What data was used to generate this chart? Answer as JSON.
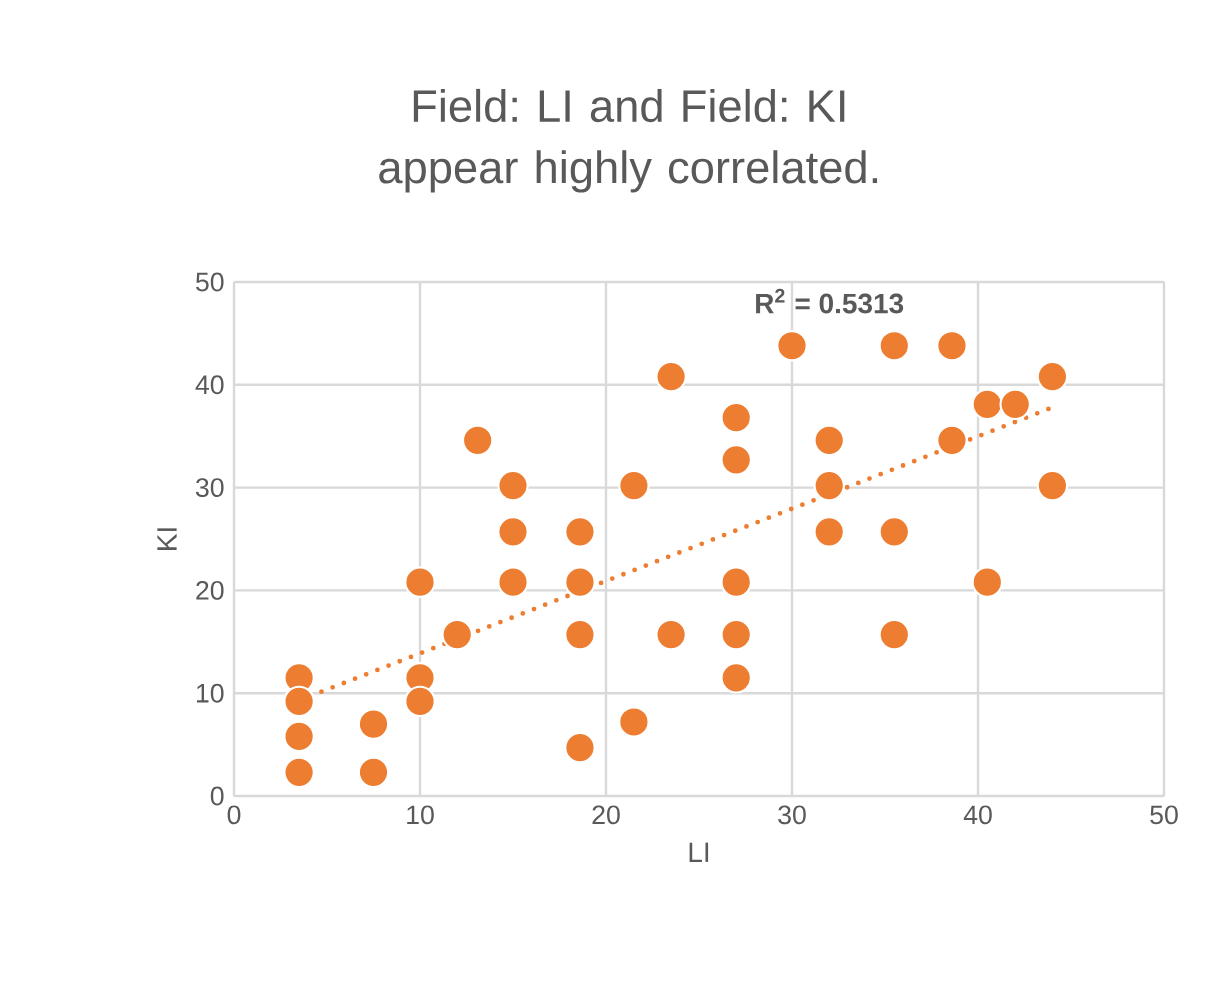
{
  "chart_data": {
    "type": "scatter",
    "title": "Field: LI and Field: KI appear highly correlated.",
    "xlabel": "LI",
    "ylabel": "KI",
    "xlim": [
      0,
      50
    ],
    "xticks": [
      0,
      10,
      20,
      30,
      40,
      50
    ],
    "ylim": [
      0,
      50
    ],
    "yticks": [
      0,
      10,
      20,
      30,
      40,
      50
    ],
    "grid": true,
    "marker": "circle",
    "annotations": [
      "R$^{2}$ = 0.5313"
    ],
    "series": [
      {
        "color": "#ed7d31",
        "x": [
          3.5,
          3.5,
          3.5,
          3.5,
          7.5,
          7.5,
          10,
          10,
          10,
          12,
          13.1,
          15,
          15,
          15,
          18.6,
          18.6,
          18.6,
          18.6,
          21.5,
          21.5,
          23.5,
          23.5,
          27,
          27,
          27,
          27,
          27,
          30,
          32,
          32,
          32,
          35.5,
          35.5,
          35.5,
          38.6,
          38.6,
          40.5,
          40.5,
          42,
          44,
          44
        ],
        "values": [
          11.5,
          9.2,
          5.8,
          2.3,
          7,
          2.3,
          11.5,
          9.2,
          20.8,
          15.7,
          34.6,
          30.2,
          25.7,
          20.8,
          25.7,
          20.8,
          15.7,
          4.7,
          30.2,
          7.2,
          40.8,
          15.7,
          36.8,
          32.7,
          20.8,
          15.7,
          11.5,
          43.8,
          34.6,
          30.2,
          25.7,
          43.8,
          25.7,
          15.7,
          43.8,
          34.6,
          38.1,
          20.8,
          38.1,
          40.8,
          30.2
        ]
      },
      {
        "type": "line",
        "color": "#ed7d31",
        "line_style": "dotted",
        "marker": "none",
        "x": [
          3.5,
          44
        ],
        "values": [
          9.3,
          37.8
        ]
      }
    ]
  }
}
